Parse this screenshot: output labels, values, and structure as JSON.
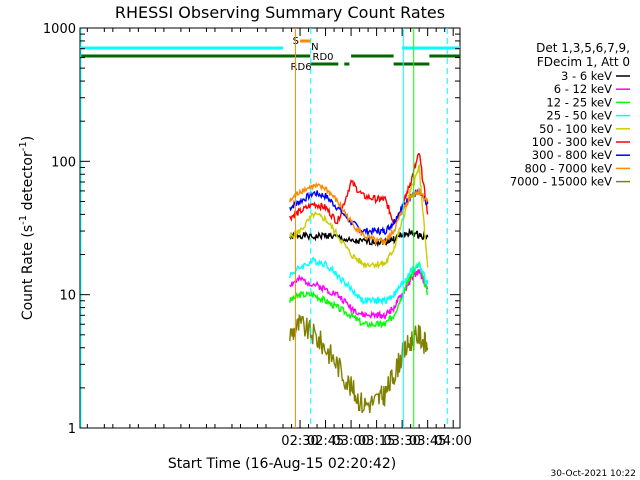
{
  "chart_data": {
    "type": "line",
    "title": "RHESSI Observing Summary Count Rates",
    "xlabel": "Start Time (16-Aug-15 02:20:42)",
    "ylabel": "Count Rate (s",
    "ylabel_sup": "-1",
    "ylabel_tail": " detector",
    "ylabel_sup2": "-1",
    "ylabel_close": ")",
    "ylim": [
      1,
      1000
    ],
    "yscale": "log",
    "xlim_minutes": [
      20.7,
      244
    ],
    "x_ticks": [
      {
        "m": 150,
        "label": "02:30"
      },
      {
        "m": 165,
        "label": "02:45"
      },
      {
        "m": 180,
        "label": "03:00"
      },
      {
        "m": 195,
        "label": "03:15"
      },
      {
        "m": 210,
        "label": "03:30"
      },
      {
        "m": 225,
        "label": "03:45"
      },
      {
        "m": 240,
        "label": "04:00"
      }
    ],
    "y_ticks": [
      {
        "v": 1,
        "label": "1"
      },
      {
        "v": 10,
        "label": "10"
      },
      {
        "v": 100,
        "label": "100"
      },
      {
        "v": 1000,
        "label": "1000"
      }
    ],
    "legend": {
      "placement": "right",
      "header": [
        "Det 1,3,5,6,7,9,",
        "FDecim 1, Att 0"
      ]
    },
    "series": [
      {
        "name": "3 - 6 keV",
        "color": "#000000",
        "points": [
          [
            144,
            27
          ],
          [
            150,
            28
          ],
          [
            158,
            27
          ],
          [
            165,
            28
          ],
          [
            172,
            27
          ],
          [
            180,
            25
          ],
          [
            187,
            25
          ],
          [
            195,
            25
          ],
          [
            200,
            25
          ],
          [
            205,
            26
          ],
          [
            210,
            28
          ],
          [
            215,
            29
          ],
          [
            220,
            28
          ],
          [
            225,
            27
          ]
        ]
      },
      {
        "name": "6 - 12 keV",
        "color": "#ff00ff",
        "points": [
          [
            144,
            12
          ],
          [
            150,
            13
          ],
          [
            158,
            12
          ],
          [
            165,
            11
          ],
          [
            172,
            10
          ],
          [
            180,
            8
          ],
          [
            187,
            7
          ],
          [
            195,
            7
          ],
          [
            200,
            7
          ],
          [
            205,
            8
          ],
          [
            210,
            10
          ],
          [
            215,
            13
          ],
          [
            220,
            15
          ],
          [
            225,
            11
          ]
        ]
      },
      {
        "name": "12 - 25 keV",
        "color": "#00ff00",
        "points": [
          [
            144,
            9
          ],
          [
            150,
            10
          ],
          [
            158,
            10
          ],
          [
            165,
            9
          ],
          [
            172,
            8
          ],
          [
            180,
            7
          ],
          [
            187,
            6
          ],
          [
            195,
            6
          ],
          [
            200,
            6
          ],
          [
            205,
            7
          ],
          [
            210,
            10
          ],
          [
            215,
            14
          ],
          [
            220,
            17
          ],
          [
            225,
            10
          ]
        ]
      },
      {
        "name": "25 - 50 keV",
        "color": "#00ffff",
        "points": [
          [
            144,
            14
          ],
          [
            150,
            16
          ],
          [
            158,
            18
          ],
          [
            165,
            17
          ],
          [
            172,
            14
          ],
          [
            180,
            11
          ],
          [
            187,
            9
          ],
          [
            195,
            9
          ],
          [
            200,
            9
          ],
          [
            205,
            10
          ],
          [
            210,
            12
          ],
          [
            215,
            15
          ],
          [
            220,
            17
          ],
          [
            225,
            12
          ]
        ]
      },
      {
        "name": "50 - 100 keV",
        "color": "#cccc00",
        "points": [
          [
            144,
            27
          ],
          [
            150,
            30
          ],
          [
            158,
            40
          ],
          [
            165,
            37
          ],
          [
            172,
            28
          ],
          [
            180,
            20
          ],
          [
            187,
            17
          ],
          [
            195,
            17
          ],
          [
            200,
            17
          ],
          [
            205,
            22
          ],
          [
            210,
            35
          ],
          [
            215,
            60
          ],
          [
            220,
            90
          ],
          [
            225,
            16
          ]
        ]
      },
      {
        "name": "100 - 300 keV",
        "color": "#ff0000",
        "points": [
          [
            144,
            38
          ],
          [
            150,
            42
          ],
          [
            158,
            48
          ],
          [
            165,
            45
          ],
          [
            172,
            35
          ],
          [
            180,
            70
          ],
          [
            187,
            55
          ],
          [
            195,
            52
          ],
          [
            200,
            52
          ],
          [
            205,
            35
          ],
          [
            210,
            45
          ],
          [
            215,
            70
          ],
          [
            220,
            115
          ],
          [
            225,
            40
          ]
        ]
      },
      {
        "name": "300 - 800 keV",
        "color": "#0000ff",
        "points": [
          [
            144,
            45
          ],
          [
            150,
            50
          ],
          [
            158,
            58
          ],
          [
            165,
            55
          ],
          [
            172,
            45
          ],
          [
            180,
            35
          ],
          [
            187,
            30
          ],
          [
            195,
            30
          ],
          [
            200,
            30
          ],
          [
            205,
            35
          ],
          [
            210,
            45
          ],
          [
            215,
            55
          ],
          [
            220,
            58
          ],
          [
            225,
            48
          ]
        ]
      },
      {
        "name": "800 - 7000 keV",
        "color": "#ff8800",
        "points": [
          [
            144,
            50
          ],
          [
            150,
            60
          ],
          [
            158,
            65
          ],
          [
            165,
            63
          ],
          [
            172,
            50
          ],
          [
            180,
            35
          ],
          [
            187,
            28
          ],
          [
            195,
            25
          ],
          [
            200,
            25
          ],
          [
            205,
            30
          ],
          [
            210,
            42
          ],
          [
            215,
            55
          ],
          [
            220,
            60
          ],
          [
            225,
            50
          ]
        ]
      },
      {
        "name": "7000 - 15000 keV",
        "color": "#808000",
        "points": [
          [
            144,
            5
          ],
          [
            150,
            6
          ],
          [
            158,
            5
          ],
          [
            165,
            4
          ],
          [
            172,
            3
          ],
          [
            180,
            2
          ],
          [
            187,
            1.5
          ],
          [
            195,
            1.6
          ],
          [
            200,
            1.8
          ],
          [
            205,
            2.5
          ],
          [
            210,
            3.5
          ],
          [
            215,
            4.5
          ],
          [
            220,
            5
          ],
          [
            225,
            4
          ]
        ]
      }
    ],
    "annotations": {
      "saa_label": "S",
      "night_label": "N",
      "rd0_label": "RD0",
      "rd6_label": "RD6",
      "timestamp": "30-Oct-2021 10:22"
    }
  }
}
